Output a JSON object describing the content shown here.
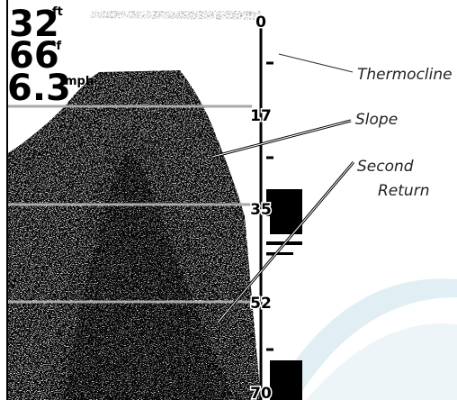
{
  "readouts": [
    {
      "value": 32,
      "unit": "ft"
    },
    {
      "value": 66,
      "unit": "°f"
    },
    {
      "value": 6.3,
      "unit": "mph"
    }
  ],
  "depth_scale": [
    0,
    17,
    35,
    52,
    70
  ],
  "annotations": {
    "thermocline": "Thermocline",
    "slope": "Slope",
    "second_return": [
      "Second",
      "Return"
    ]
  }
}
